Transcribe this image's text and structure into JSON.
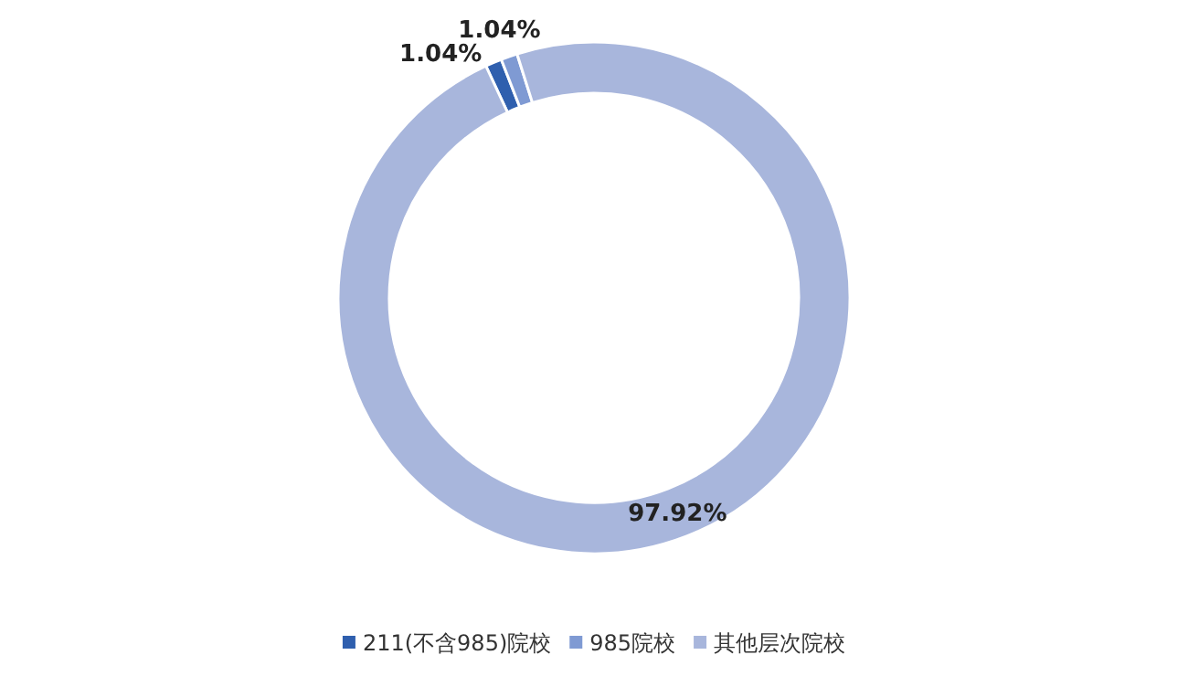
{
  "chart_data": {
    "type": "donut",
    "categories": [
      "211(不含985)院校",
      "985院校",
      "其他层次院校"
    ],
    "values": [
      1.04,
      1.04,
      97.92
    ],
    "colors": [
      "#2f5fae",
      "#7f9ad3",
      "#a8b6dc"
    ],
    "value_labels": [
      "1.04%",
      "1.04%",
      "97.92%"
    ],
    "legend": "bottom"
  }
}
